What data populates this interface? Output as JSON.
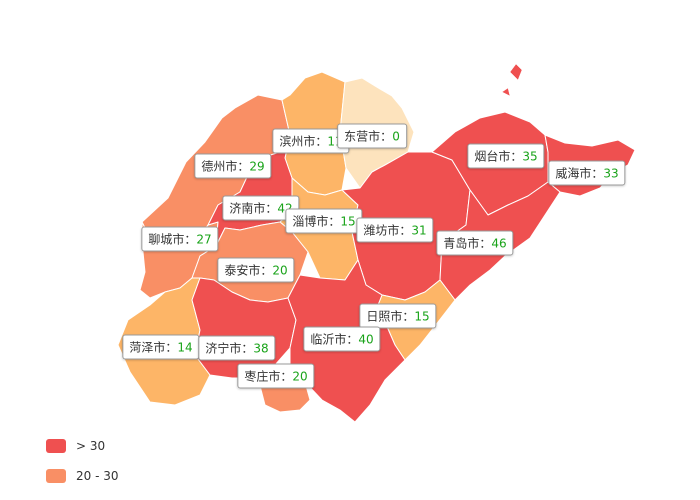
{
  "colors": {
    "high": "#ef5050",
    "mid": "#f98f65",
    "low": "#fdb567",
    "lowest": "#fde3bd",
    "border": "#ffffff"
  },
  "separator": "：",
  "regions": [
    {
      "id": "binzhou",
      "name": "滨州市",
      "value": 11
    },
    {
      "id": "dongying",
      "name": "东营市",
      "value": 0
    },
    {
      "id": "dezhou",
      "name": "德州市",
      "value": 29
    },
    {
      "id": "yantai",
      "name": "烟台市",
      "value": 35
    },
    {
      "id": "weihai",
      "name": "威海市",
      "value": 33
    },
    {
      "id": "jinan",
      "name": "济南市",
      "value": 42
    },
    {
      "id": "zibo",
      "name": "淄博市",
      "value": 15
    },
    {
      "id": "weifang",
      "name": "潍坊市",
      "value": 31
    },
    {
      "id": "liaocheng",
      "name": "聊城市",
      "value": 27
    },
    {
      "id": "qingdao",
      "name": "青岛市",
      "value": 46
    },
    {
      "id": "taian",
      "name": "泰安市",
      "value": 20
    },
    {
      "id": "rizhao",
      "name": "日照市",
      "value": 15
    },
    {
      "id": "heze",
      "name": "菏泽市",
      "value": 14
    },
    {
      "id": "jining",
      "name": "济宁市",
      "value": 38
    },
    {
      "id": "linyi",
      "name": "临沂市",
      "value": 40
    },
    {
      "id": "zaozhuang",
      "name": "枣庄市",
      "value": 20
    }
  ],
  "legend": [
    {
      "label": "> 30",
      "color": "#ef5050"
    },
    {
      "label": "20 - 30",
      "color": "#f98f65"
    }
  ]
}
